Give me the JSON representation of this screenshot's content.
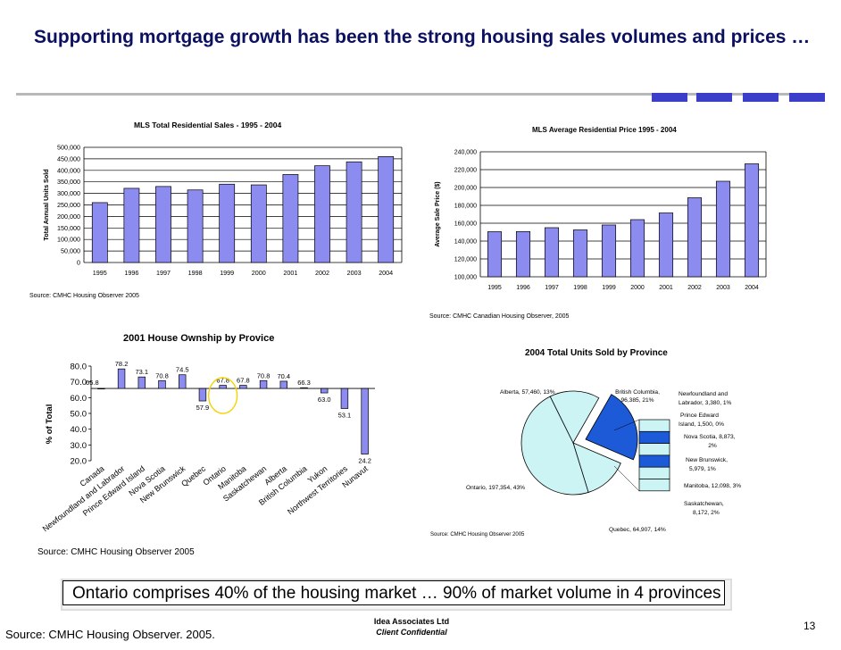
{
  "slide": {
    "title": "Supporting mortgage growth has been the strong housing sales volumes and prices …",
    "callout": "Ontario comprises 40% of the housing market … 90% of market volume in 4 provinces",
    "footer_source": "Source: CMHC Housing Observer. 2005.",
    "company": "Idea Associates Ltd",
    "confidential": "Client Confidential",
    "page_number": "13",
    "accent_color": "#0c1060",
    "bar_color": "#8c8cf0"
  },
  "chart_data": [
    {
      "type": "bar",
      "title": "MLS Total Residential Sales - 1995 - 2004",
      "ylabel": "Total Annual Units Sold",
      "xlabel": "",
      "source": "Source: CMHC Housing Observer 2005",
      "categories": [
        "1995",
        "1996",
        "1997",
        "1998",
        "1999",
        "2000",
        "2001",
        "2002",
        "2003",
        "2004"
      ],
      "values": [
        260000,
        322000,
        330000,
        315000,
        340000,
        337000,
        382000,
        420000,
        437000,
        460000
      ],
      "ylim": [
        0,
        500000
      ],
      "yticks": [
        "0",
        "50,000",
        "100,000",
        "150,000",
        "200,000",
        "250,000",
        "300,000",
        "350,000",
        "400,000",
        "450,000",
        "500,000"
      ],
      "grid": true
    },
    {
      "type": "bar",
      "title": "MLS Average Residential Price 1995 - 2004",
      "ylabel": "Average Sale Price ($)",
      "xlabel": "",
      "source": "Source: CMHC Canadian Housing Observer, 2005",
      "categories": [
        "1995",
        "1996",
        "1997",
        "1998",
        "1999",
        "2000",
        "2001",
        "2002",
        "2003",
        "2004"
      ],
      "values": [
        150500,
        150700,
        155000,
        152500,
        158000,
        164000,
        171500,
        188500,
        207000,
        226500
      ],
      "ylim": [
        100000,
        240000
      ],
      "yticks": [
        "100,000",
        "120,000",
        "140,000",
        "160,000",
        "180,000",
        "200,000",
        "220,000",
        "240,000"
      ],
      "grid": true
    },
    {
      "type": "bar",
      "title": "2001 House Ownship by Provice",
      "ylabel": "% of Total",
      "xlabel": "",
      "source": "Source: CMHC Housing Observer 2005",
      "categories": [
        "Canada",
        "Newfoundland and Labrador",
        "Prince Edward Island",
        "Nova Scotia",
        "New Brunswick",
        "Quebec",
        "Ontario",
        "Manitoba",
        "Saskatchewan",
        "Alberta",
        "British Columbia",
        "Yukon",
        "Northwest Territories",
        "Nunavut"
      ],
      "values": [
        65.8,
        78.2,
        73.1,
        70.8,
        74.5,
        57.9,
        67.8,
        67.8,
        70.8,
        70.4,
        66.3,
        63.0,
        53.1,
        24.2
      ],
      "data_labels": [
        "65.8",
        "78.2",
        "73.1",
        "70.8",
        "74.5",
        "57.9",
        "67.8",
        "67.8",
        "70.8",
        "70.4",
        "66.3",
        "63.0",
        "53.1",
        "24.2"
      ],
      "baseline": 65.8,
      "ylim": [
        20,
        80
      ],
      "yticks": [
        "20.0",
        "30.0",
        "40.0",
        "50.0",
        "60.0",
        "70.0",
        "80.0"
      ],
      "grid": false
    },
    {
      "type": "pie",
      "title": "2004 Total Units Sold by Province",
      "source": "Source: CMHC Housing Observer 2005",
      "slices": [
        {
          "name": "Ontario",
          "value": 197354,
          "label": "Ontario, 197,354, 43%",
          "color": "#ccf4f4"
        },
        {
          "name": "Quebec",
          "value": 64907,
          "label": "Quebec, 64,907, 14%",
          "color": "#ccf4f4"
        },
        {
          "name": "Alberta",
          "value": 57460,
          "label": "Alberta, 57,460, 13%",
          "color": "#ccf4f4"
        },
        {
          "name": "British Columbia",
          "value": 96385,
          "label": "British Columbia, 96,385, 21%",
          "color": "#1c5ad8"
        }
      ],
      "other_stack": [
        {
          "name": "Newfoundland and Labrador",
          "label": "Newfoundland and Labrador, 3,380, 1%",
          "color": "#ccf4f4"
        },
        {
          "name": "Prince Edward Island",
          "label": "Prince Edward Island, 1,500, 0%",
          "color": "#1c5ad8"
        },
        {
          "name": "Nova Scotia",
          "label": "Nova Scotia, 8,873, 2%",
          "color": "#ccf4f4"
        },
        {
          "name": "New Brunswick",
          "label": "New Brunswick, 5,979, 1%",
          "color": "#1c5ad8"
        },
        {
          "name": "Manitoba",
          "label": "Manitoba, 12,098, 3%",
          "color": "#ccf4f4"
        },
        {
          "name": "Saskatchewan",
          "label": "Saskatchewan, 8,172, 2%",
          "color": "#ccf4f4"
        }
      ]
    }
  ]
}
